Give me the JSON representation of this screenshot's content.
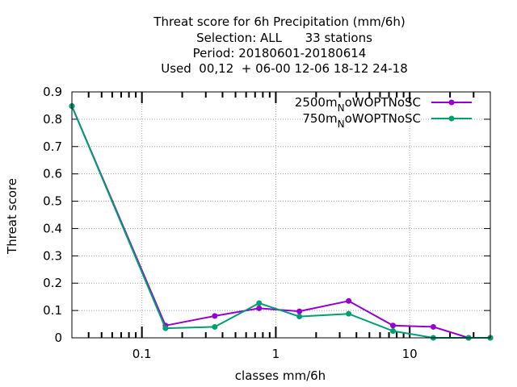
{
  "chart_data": {
    "type": "line",
    "title_lines": [
      "Threat score  for 6h Precipitation (mm/6h)",
      "Selection: ALL      33 stations",
      "Period: 20180601-20180614",
      "Used  00,12  + 06-00 12-06 18-12 24-18"
    ],
    "xlabel": "classes mm/6h",
    "ylabel": "Threat score",
    "xscale": "log",
    "xlim": [
      0.03,
      40
    ],
    "ylim": [
      0,
      0.9
    ],
    "xticks": [
      {
        "value": 0.1,
        "label": "0.1"
      },
      {
        "value": 1,
        "label": "1"
      },
      {
        "value": 10,
        "label": "10"
      }
    ],
    "yticks": [
      {
        "value": 0,
        "label": "0"
      },
      {
        "value": 0.1,
        "label": "0.1"
      },
      {
        "value": 0.2,
        "label": "0.2"
      },
      {
        "value": 0.3,
        "label": "0.3"
      },
      {
        "value": 0.4,
        "label": "0.4"
      },
      {
        "value": 0.5,
        "label": "0.5"
      },
      {
        "value": 0.6,
        "label": "0.6"
      },
      {
        "value": 0.7,
        "label": "0.7"
      },
      {
        "value": 0.8,
        "label": "0.8"
      },
      {
        "value": 0.9,
        "label": "0.9"
      }
    ],
    "grid": true,
    "legend_position": "top-right",
    "series": [
      {
        "name_main": "2500m",
        "name_sub": "N",
        "name_rest": "oWOPTNoSC",
        "color": "#9400d3",
        "x": [
          0.03,
          0.15,
          0.35,
          0.75,
          1.5,
          3.5,
          7.5,
          15,
          27.5,
          40
        ],
        "y": [
          0.848,
          0.045,
          0.08,
          0.108,
          0.097,
          0.135,
          0.045,
          0.04,
          0.0,
          0.0
        ]
      },
      {
        "name_main": "750m",
        "name_sub": "N",
        "name_rest": "oWOPTNoSC",
        "color": "#009e73",
        "x": [
          0.03,
          0.15,
          0.35,
          0.75,
          1.5,
          3.5,
          7.5,
          15,
          27.5,
          40
        ],
        "y": [
          0.848,
          0.035,
          0.04,
          0.127,
          0.078,
          0.088,
          0.025,
          0.0,
          0.0,
          0.0
        ]
      }
    ]
  }
}
